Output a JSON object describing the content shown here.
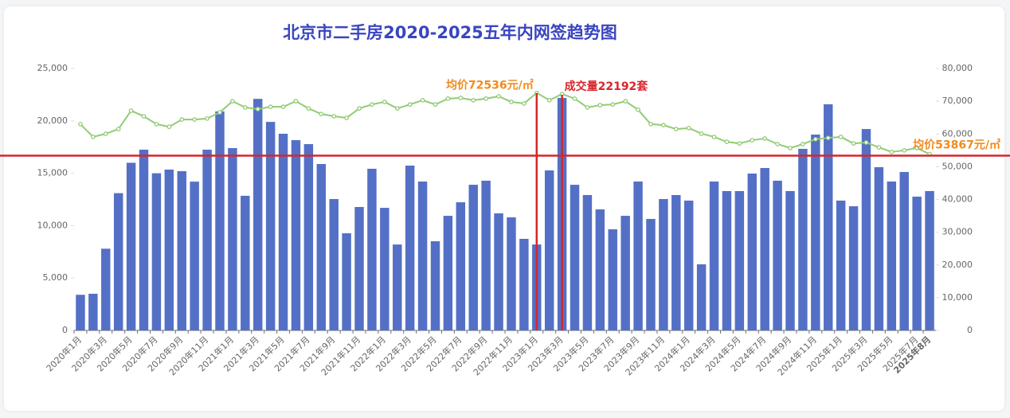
{
  "chart_data": {
    "type": "bar-line",
    "title": "北京市二手房2020-2025五年内网签趋势图",
    "categories": [
      "2020年1月",
      null,
      "2020年3月",
      null,
      "2020年5月",
      null,
      "2020年7月",
      null,
      "2020年9月",
      null,
      "2020年11月",
      null,
      "2021年1月",
      null,
      "2021年3月",
      null,
      "2021年5月",
      null,
      "2021年7月",
      null,
      "2021年9月",
      null,
      "2021年11月",
      null,
      "2022年1月",
      null,
      "2022年3月",
      null,
      "2022年5月",
      null,
      "2022年7月",
      null,
      "2022年9月",
      null,
      "2022年11月",
      null,
      "2023年1月",
      null,
      "2023年3月",
      null,
      "2023年5月",
      null,
      "2023年7月",
      null,
      "2023年9月",
      null,
      "2023年11月",
      null,
      "2024年1月",
      null,
      "2024年3月",
      null,
      "2024年5月",
      null,
      "2024年7月",
      null,
      "2024年9月",
      null,
      "2024年11月",
      null,
      "2025年1月",
      null,
      "2025年3月",
      null,
      "2025年5月",
      null,
      "2025年7月",
      "2025年8月"
    ],
    "series": [
      {
        "name": "成交量",
        "type": "bar",
        "color": "#5470c6",
        "values": [
          3400,
          3500,
          7800,
          13100,
          16000,
          17250,
          15000,
          15350,
          15200,
          14200,
          17250,
          20900,
          17400,
          12850,
          22100,
          19900,
          18770,
          18160,
          17780,
          15880,
          12540,
          9270,
          11780,
          15430,
          11700,
          8200,
          15730,
          14210,
          8510,
          10940,
          12230,
          13900,
          14290,
          11170,
          10790,
          8740,
          8200,
          15270,
          22192,
          13900,
          12920,
          11550,
          9650,
          10940,
          14210,
          10640,
          12540,
          12920,
          12390,
          6310,
          14210,
          13300,
          13300,
          14970,
          15500,
          14290,
          13300,
          17330,
          18690,
          21580,
          12390,
          11850,
          19220,
          15580,
          14210,
          15120,
          12770,
          13300
        ]
      },
      {
        "name": "均价",
        "type": "line",
        "axis": "y2",
        "color": "#91cc75",
        "values": [
          63000,
          59100,
          60060,
          61500,
          67100,
          65400,
          63000,
          62200,
          64400,
          64400,
          64700,
          66600,
          70000,
          68100,
          67600,
          68300,
          68300,
          70000,
          67800,
          66100,
          65400,
          64900,
          67800,
          69000,
          69800,
          67800,
          69000,
          70300,
          69000,
          70800,
          71000,
          70300,
          70800,
          71500,
          69800,
          69300,
          72536,
          70300,
          72200,
          70800,
          68100,
          68800,
          69000,
          70000,
          67400,
          63000,
          62700,
          61500,
          61800,
          60100,
          59100,
          57600,
          57100,
          58100,
          58600,
          56900,
          55700,
          56900,
          58400,
          58800,
          59100,
          57100,
          57400,
          55900,
          54500,
          55000,
          55700,
          53867
        ]
      }
    ],
    "annotations": [
      "均价72536元/㎡",
      "成交量22192套",
      "均价53867元/㎡"
    ],
    "ylim": [
      0,
      25000
    ],
    "yticks": [
      0,
      {
        "value": 5000,
        "label": "5,000"
      },
      {
        "value": 10000,
        "label": "10,000"
      },
      {
        "value": 15000,
        "label": "15,000"
      },
      {
        "value": 20000,
        "label": "20,000"
      },
      {
        "value": 25000,
        "label": "25,000"
      }
    ],
    "y2lim": [
      0,
      80000
    ],
    "y2ticks": [
      0,
      {
        "value": 10000,
        "label": "10,000"
      },
      {
        "value": 20000,
        "label": "20,000"
      },
      {
        "value": 30000,
        "label": "30,000"
      },
      {
        "value": 40000,
        "label": "40,000"
      },
      {
        "value": 50000,
        "label": "50,000"
      },
      {
        "value": 60000,
        "label": "60,000"
      },
      {
        "value": 70000,
        "label": "70,000"
      },
      {
        "value": 80000,
        "label": "80,000"
      }
    ],
    "grid": false
  }
}
